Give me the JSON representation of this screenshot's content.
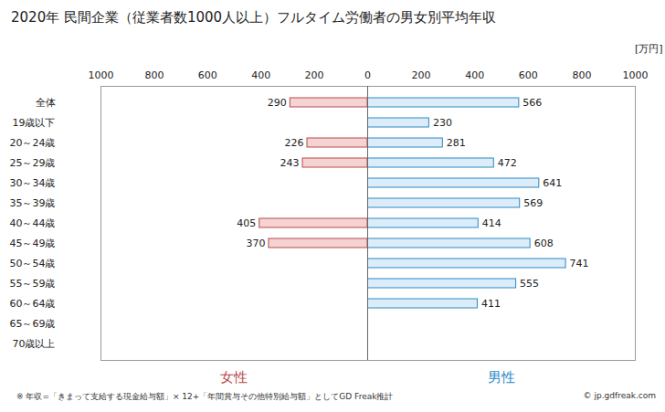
{
  "chart_data": {
    "type": "bar",
    "title": "2020年 民間企業（従業者数1000人以上）フルタイム労働者の男女別平均年収",
    "x_label": "[万円]",
    "orientation": "horizontal",
    "categories": [
      "全体",
      "19歳以下",
      "20～24歳",
      "25～29歳",
      "30～34歳",
      "35～39歳",
      "40～44歳",
      "45～49歳",
      "50～54歳",
      "55～59歳",
      "60～64歳",
      "65～69歳",
      "70歳以上"
    ],
    "series": [
      {
        "name": "女性",
        "color": "#b94a48",
        "values": [
          290,
          null,
          226,
          243,
          null,
          null,
          405,
          370,
          null,
          null,
          null,
          null,
          null
        ]
      },
      {
        "name": "男性",
        "color": "#2a8ac6",
        "values": [
          566,
          230,
          281,
          472,
          641,
          569,
          414,
          608,
          741,
          555,
          411,
          null,
          null
        ]
      }
    ],
    "xlim": [
      0,
      1000
    ],
    "xticks": [
      0,
      200,
      400,
      600,
      800,
      1000
    ],
    "grid": false,
    "data_labels": true,
    "annotations": [
      "※ 年収=「きまって支給する現金給与額」× 12+「年間賞与その他特別給与額」としてGD Freak推計",
      "© jp.gdfreak.com"
    ]
  }
}
